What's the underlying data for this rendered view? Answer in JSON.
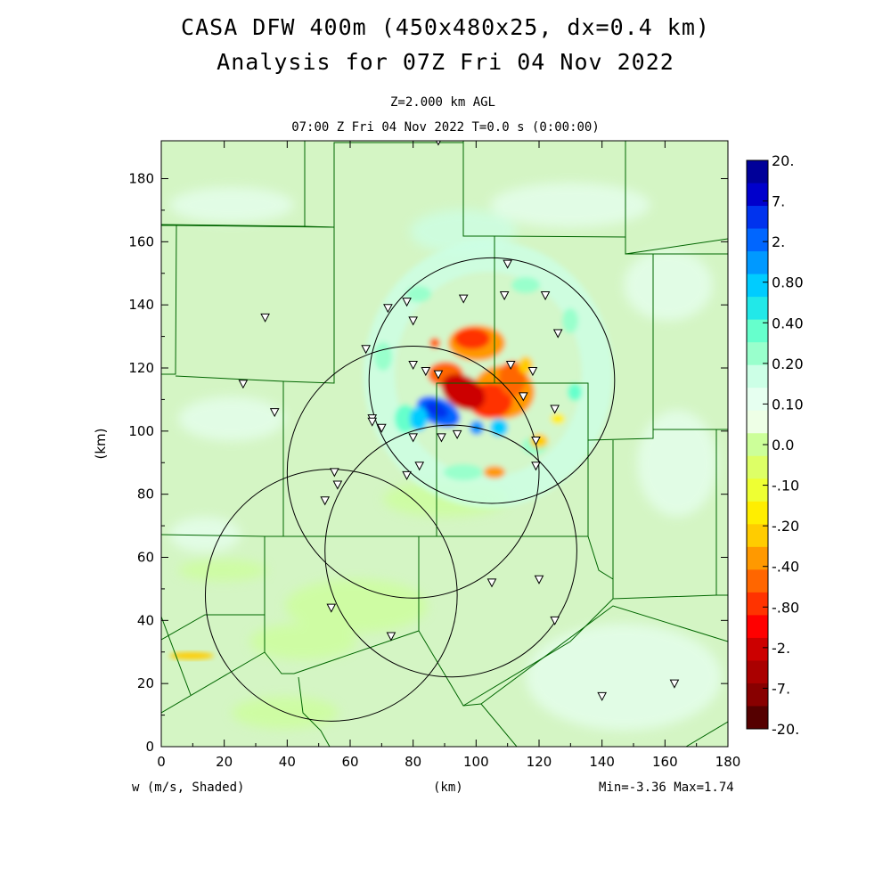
{
  "title": {
    "line1": "CASA DFW 400m (450x480x25, dx=0.4 km)",
    "line2": "Analysis for 07Z Fri 04 Nov 2022"
  },
  "subtitle": {
    "level": "Z=2.000 km AGL",
    "time": "07:00 Z Fri 04 Nov 2022   T=0.0 s (0:00:00)"
  },
  "footer": {
    "variable": "w (m/s, Shaded)",
    "xunit": "(km)",
    "minmax": "Min=-3.36 Max=1.74"
  },
  "axes": {
    "ylabel": "(km)",
    "x_ticks": [
      "0",
      "20",
      "40",
      "60",
      "80",
      "100",
      "120",
      "140",
      "160",
      "180"
    ],
    "y_ticks": [
      "0",
      "20",
      "40",
      "60",
      "80",
      "100",
      "120",
      "140",
      "160",
      "180"
    ],
    "xlim": [
      0,
      180
    ],
    "ylim": [
      0,
      192
    ]
  },
  "colorbar": {
    "labels": [
      "20.",
      "7.",
      "2.",
      "0.80",
      "0.40",
      "0.20",
      "0.10",
      "0.0",
      "-.10",
      "-.20",
      "-.40",
      "-.80",
      "-2.",
      "-7.",
      "-20."
    ],
    "colors": [
      "#000099",
      "#0000cc",
      "#0033ee",
      "#0066ff",
      "#0099ff",
      "#00ccff",
      "#22e8e8",
      "#66ffcc",
      "#99ffcc",
      "#ccffe6",
      "#e6fff0",
      "#eeffe6",
      "#ccff99",
      "#ddff66",
      "#eeff33",
      "#ffee00",
      "#ffcc00",
      "#ff9900",
      "#ff6600",
      "#ff3300",
      "#ff0000",
      "#cc0000",
      "#aa0000",
      "#880000",
      "#550000"
    ]
  },
  "map": {
    "background": "#d4f5c4",
    "radar_sites": [
      {
        "x": 88,
        "y": 192
      },
      {
        "x": 110,
        "y": 153
      },
      {
        "x": 109,
        "y": 143
      },
      {
        "x": 122,
        "y": 143
      },
      {
        "x": 96,
        "y": 142
      },
      {
        "x": 78,
        "y": 141
      },
      {
        "x": 33,
        "y": 136
      },
      {
        "x": 72,
        "y": 139
      },
      {
        "x": 80,
        "y": 135
      },
      {
        "x": 126,
        "y": 131
      },
      {
        "x": 65,
        "y": 126
      },
      {
        "x": 111,
        "y": 121
      },
      {
        "x": 80,
        "y": 121
      },
      {
        "x": 84,
        "y": 119
      },
      {
        "x": 88,
        "y": 118
      },
      {
        "x": 118,
        "y": 119
      },
      {
        "x": 26,
        "y": 115
      },
      {
        "x": 115,
        "y": 111
      },
      {
        "x": 125,
        "y": 107
      },
      {
        "x": 36,
        "y": 106
      },
      {
        "x": 67,
        "y": 104
      },
      {
        "x": 67,
        "y": 103
      },
      {
        "x": 70,
        "y": 101
      },
      {
        "x": 94,
        "y": 99
      },
      {
        "x": 80,
        "y": 98
      },
      {
        "x": 89,
        "y": 98
      },
      {
        "x": 119,
        "y": 97
      },
      {
        "x": 82,
        "y": 89
      },
      {
        "x": 119,
        "y": 89
      },
      {
        "x": 78,
        "y": 86
      },
      {
        "x": 55,
        "y": 87
      },
      {
        "x": 56,
        "y": 83
      },
      {
        "x": 52,
        "y": 78
      },
      {
        "x": 120,
        "y": 53
      },
      {
        "x": 105,
        "y": 52
      },
      {
        "x": 54,
        "y": 44
      },
      {
        "x": 125,
        "y": 40
      },
      {
        "x": 73,
        "y": 35
      },
      {
        "x": 140,
        "y": 16
      },
      {
        "x": 163,
        "y": 20
      }
    ],
    "radar_rings": [
      {
        "cx": 105,
        "cy": 116,
        "r": 39
      },
      {
        "cx": 80,
        "cy": 87,
        "r": 40
      },
      {
        "cx": 92,
        "cy": 62,
        "r": 40
      },
      {
        "cx": 54,
        "cy": 48,
        "r": 40
      }
    ]
  }
}
